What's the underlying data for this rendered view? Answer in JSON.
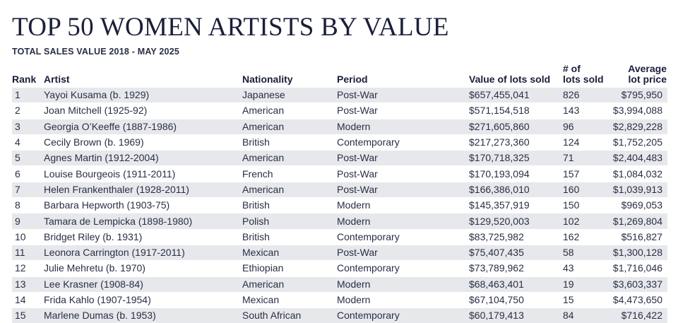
{
  "title": "TOP 50 WOMEN ARTISTS BY VALUE",
  "subtitle": "TOTAL SALES VALUE 2018 - MAY 2025",
  "headers": {
    "rank": "Rank",
    "artist": "Artist",
    "nationality": "Nationality",
    "period": "Period",
    "value": "Value of lots sold",
    "lots_line1": "# of",
    "lots_line2": "lots sold",
    "avg_line1": "Average",
    "avg_line2": "lot price"
  },
  "rows": [
    {
      "rank": "1",
      "artist": "Yayoi Kusama (b. 1929)",
      "nationality": "Japanese",
      "period": "Post-War",
      "value": "$657,455,041",
      "lots": "826",
      "avg": "$795,950"
    },
    {
      "rank": "2",
      "artist": "Joan Mitchell (1925-92)",
      "nationality": "American",
      "period": "Post-War",
      "value": "$571,154,518",
      "lots": "143",
      "avg": "$3,994,088"
    },
    {
      "rank": "3",
      "artist": "Georgia O’Keeffe (1887-1986)",
      "nationality": "American",
      "period": "Modern",
      "value": "$271,605,860",
      "lots": "96",
      "avg": "$2,829,228"
    },
    {
      "rank": "4",
      "artist": "Cecily Brown (b. 1969)",
      "nationality": "British",
      "period": "Contemporary",
      "value": "$217,273,360",
      "lots": "124",
      "avg": "$1,752,205"
    },
    {
      "rank": "5",
      "artist": "Agnes Martin (1912-2004)",
      "nationality": "American",
      "period": "Post-War",
      "value": "$170,718,325",
      "lots": "71",
      "avg": "$2,404,483"
    },
    {
      "rank": "6",
      "artist": "Louise Bourgeois (1911-2011)",
      "nationality": "French",
      "period": "Post-War",
      "value": "$170,193,094",
      "lots": "157",
      "avg": "$1,084,032"
    },
    {
      "rank": "7",
      "artist": "Helen Frankenthaler (1928-2011)",
      "nationality": "American",
      "period": "Post-War",
      "value": "$166,386,010",
      "lots": "160",
      "avg": "$1,039,913"
    },
    {
      "rank": "8",
      "artist": "Barbara Hepworth (1903-75)",
      "nationality": "British",
      "period": "Modern",
      "value": "$145,357,919",
      "lots": "150",
      "avg": "$969,053"
    },
    {
      "rank": "9",
      "artist": "Tamara de Lempicka (1898-1980)",
      "nationality": "Polish",
      "period": "Modern",
      "value": "$129,520,003",
      "lots": "102",
      "avg": "$1,269,804"
    },
    {
      "rank": "10",
      "artist": "Bridget Riley (b. 1931)",
      "nationality": "British",
      "period": "Contemporary",
      "value": "$83,725,982",
      "lots": "162",
      "avg": "$516,827"
    },
    {
      "rank": "11",
      "artist": "Leonora Carrington (1917-2011)",
      "nationality": "Mexican",
      "period": "Post-War",
      "value": "$75,407,435",
      "lots": "58",
      "avg": "$1,300,128"
    },
    {
      "rank": "12",
      "artist": "Julie Mehretu (b. 1970)",
      "nationality": "Ethiopian",
      "period": "Contemporary",
      "value": "$73,789,962",
      "lots": "43",
      "avg": "$1,716,046"
    },
    {
      "rank": "13",
      "artist": "Lee Krasner (1908-84)",
      "nationality": "American",
      "period": "Modern",
      "value": "$68,463,401",
      "lots": "19",
      "avg": "$3,603,337"
    },
    {
      "rank": "14",
      "artist": "Frida Kahlo (1907-1954)",
      "nationality": "Mexican",
      "period": "Modern",
      "value": "$67,104,750",
      "lots": "15",
      "avg": "$4,473,650"
    },
    {
      "rank": "15",
      "artist": "Marlene Dumas (b. 1953)",
      "nationality": "South African",
      "period": "Contemporary",
      "value": "$60,179,413",
      "lots": "84",
      "avg": "$716,422"
    }
  ]
}
